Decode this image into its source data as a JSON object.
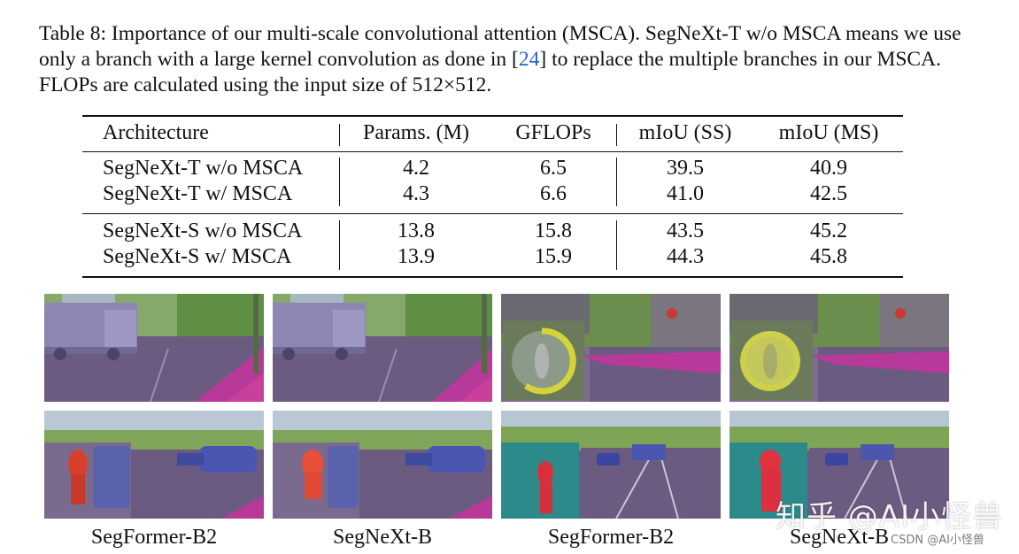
{
  "caption": {
    "part1": "Table 8: Importance of our multi-scale convolutional attention (MSCA). SegNeXt-T w/o MSCA means we use only a branch with a large kernel convolution as done in [",
    "cite": "24",
    "part2": "] to replace the multiple branches in our MSCA. FLOPs are calculated using the input size of 512×512."
  },
  "table": {
    "headers": [
      "Architecture",
      "Params. (M)",
      "GFLOPs",
      "mIoU (SS)",
      "mIoU (MS)"
    ],
    "rows": [
      [
        "SegNeXt-T w/o MSCA",
        "4.2",
        "6.5",
        "39.5",
        "40.9"
      ],
      [
        "SegNeXt-T w/ MSCA",
        "4.3",
        "6.6",
        "41.0",
        "42.5"
      ],
      [
        "SegNeXt-S w/o MSCA",
        "13.8",
        "15.8",
        "43.5",
        "45.2"
      ],
      [
        "SegNeXt-S w/ MSCA",
        "13.9",
        "15.9",
        "44.3",
        "45.8"
      ]
    ]
  },
  "figure": {
    "labels": [
      "SegFormer-B2",
      "SegNeXt-B",
      "SegFormer-B2",
      "SegNeXt-B"
    ]
  },
  "watermark": {
    "main": "知乎 @AI小怪兽",
    "sub": "CSDN @AI小怪兽"
  }
}
